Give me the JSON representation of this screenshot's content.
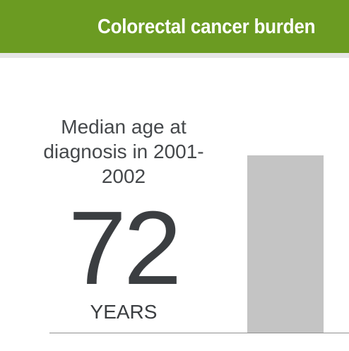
{
  "header": {
    "title": "Colorectal cancer burden"
  },
  "stat": {
    "label": "Median age at diagnosis in 2001-2002",
    "value": "72",
    "unit": "YEARS"
  }
}
